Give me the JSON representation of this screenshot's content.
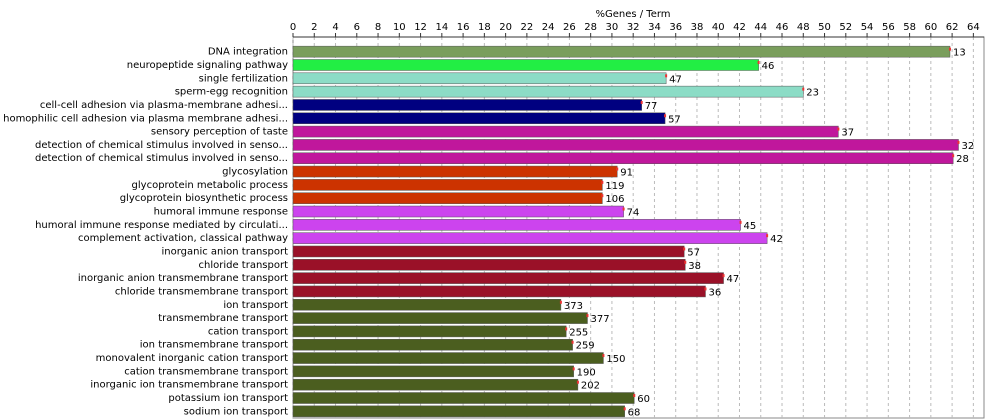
{
  "chart_data": {
    "type": "barh",
    "xlabel": "%Genes / Term",
    "categories": [
      "DNA integration",
      "neuropeptide signaling pathway",
      "single fertilization",
      "sperm-egg recognition",
      "cell-cell adhesion via plasma-membrane adhesi...",
      "homophilic cell adhesion via plasma membrane adhesi...",
      "sensory perception of taste",
      "detection of chemical stimulus involved in senso...",
      "detection of chemical stimulus involved in senso...",
      "glycosylation",
      "glycoprotein metabolic process",
      "glycoprotein biosynthetic process",
      "humoral immune response",
      "humoral immune response mediated by circulati...",
      "complement activation, classical pathway",
      "inorganic anion transport",
      "chloride transport",
      "inorganic anion transmembrane transport",
      "chloride transmembrane transport",
      "ion transport",
      "transmembrane transport",
      "cation transport",
      "ion transmembrane transport",
      "monovalent inorganic cation transport",
      "cation transmembrane transport",
      "inorganic ion transmembrane transport",
      "potassium ion transport",
      "sodium ion transport"
    ],
    "values": [
      61.8,
      43.8,
      35.1,
      48.0,
      32.8,
      35.0,
      51.3,
      62.6,
      62.1,
      30.5,
      29.1,
      29.1,
      31.1,
      42.1,
      44.6,
      36.8,
      36.9,
      40.5,
      38.8,
      25.2,
      27.7,
      25.7,
      26.3,
      29.2,
      26.4,
      26.8,
      32.1,
      31.2
    ],
    "value_counts": [
      "13",
      "46",
      "47",
      "23",
      "77",
      "57",
      "37",
      "32",
      "28",
      "91",
      "119",
      "106",
      "74",
      "45",
      "42",
      "57",
      "38",
      "47",
      "36",
      "373",
      "377",
      "255",
      "259",
      "150",
      "190",
      "202",
      "60",
      "68"
    ],
    "colors": [
      "#7a9e5c",
      "#22ee44",
      "#8cdcc6",
      "#8cdcc6",
      "#000080",
      "#000080",
      "#c0179c",
      "#c0179c",
      "#c0179c",
      "#cc3300",
      "#cc3300",
      "#cc3300",
      "#cc44ee",
      "#cc44ee",
      "#cc44ee",
      "#9a1128",
      "#9a1128",
      "#9a1128",
      "#9a1128",
      "#4b5e1f",
      "#4b5e1f",
      "#4b5e1f",
      "#4b5e1f",
      "#4b5e1f",
      "#4b5e1f",
      "#4b5e1f",
      "#4b5e1f",
      "#4b5e1f"
    ],
    "xlim": [
      0,
      65
    ],
    "xticks": [
      0,
      2,
      4,
      6,
      8,
      10,
      12,
      14,
      16,
      18,
      20,
      22,
      24,
      26,
      28,
      30,
      32,
      34,
      36,
      38,
      40,
      42,
      44,
      46,
      48,
      50,
      52,
      54,
      56,
      58,
      60,
      62,
      64
    ],
    "grid": true
  }
}
